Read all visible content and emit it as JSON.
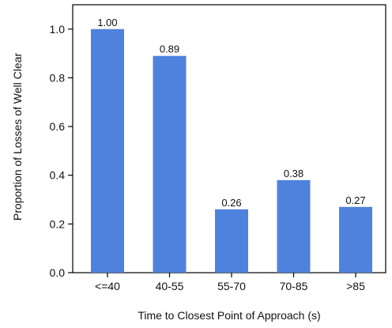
{
  "chart_data": {
    "type": "bar",
    "categories": [
      "<=40",
      "40-55",
      "55-70",
      "70-85",
      ">85"
    ],
    "values": [
      1.0,
      0.89,
      0.26,
      0.38,
      0.27
    ],
    "data_labels": [
      "1.00",
      "0.89",
      "0.26",
      "0.38",
      "0.27"
    ],
    "xlabel": "Time to Closest Point of Approach (s)",
    "ylabel": "Proportion of Losses of Well Clear",
    "ylim": [
      0,
      1.1
    ],
    "yticks": [
      0.0,
      0.2,
      0.4,
      0.6,
      0.8,
      1.0
    ],
    "ytick_labels": [
      "0.0",
      "0.2",
      "0.4",
      "0.6",
      "0.8",
      "1.0"
    ],
    "grid": false,
    "legend": "none",
    "bar_color": "#4f82dc"
  }
}
